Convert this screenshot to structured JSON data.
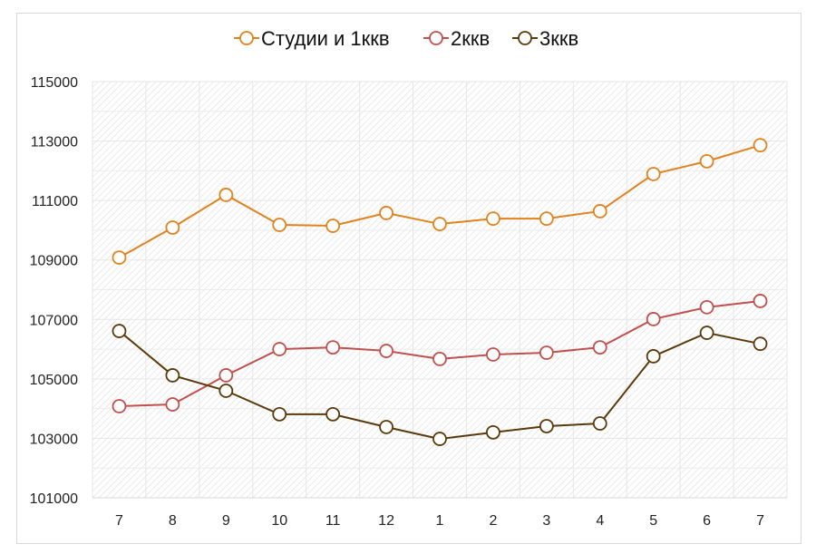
{
  "chart_data": {
    "type": "line",
    "categories": [
      "7",
      "8",
      "9",
      "10",
      "11",
      "12",
      "1",
      "2",
      "3",
      "4",
      "5",
      "6",
      "7"
    ],
    "series": [
      {
        "name": "Студии и 1ккв",
        "color": "#e0821e",
        "values": [
          109080,
          110090,
          111190,
          110180,
          110150,
          110580,
          110210,
          110390,
          110390,
          110640,
          111890,
          112320,
          112860
        ]
      },
      {
        "name": "2ккв",
        "color": "#c0504d",
        "values": [
          104080,
          104140,
          105120,
          106000,
          106060,
          105940,
          105670,
          105820,
          105880,
          106060,
          107010,
          107410,
          107620
        ]
      },
      {
        "name": "3ккв",
        "color": "#5a3a0a",
        "values": [
          106610,
          105120,
          104600,
          103810,
          103810,
          103380,
          102980,
          103200,
          103410,
          103500,
          105760,
          106550,
          106180
        ]
      }
    ],
    "ylim": [
      101000,
      115000
    ],
    "yticks": [
      "101000",
      "103000",
      "105000",
      "107000",
      "109000",
      "111000",
      "113000",
      "115000"
    ],
    "grid": true,
    "legend": "top",
    "markers": "hollow-circle"
  }
}
